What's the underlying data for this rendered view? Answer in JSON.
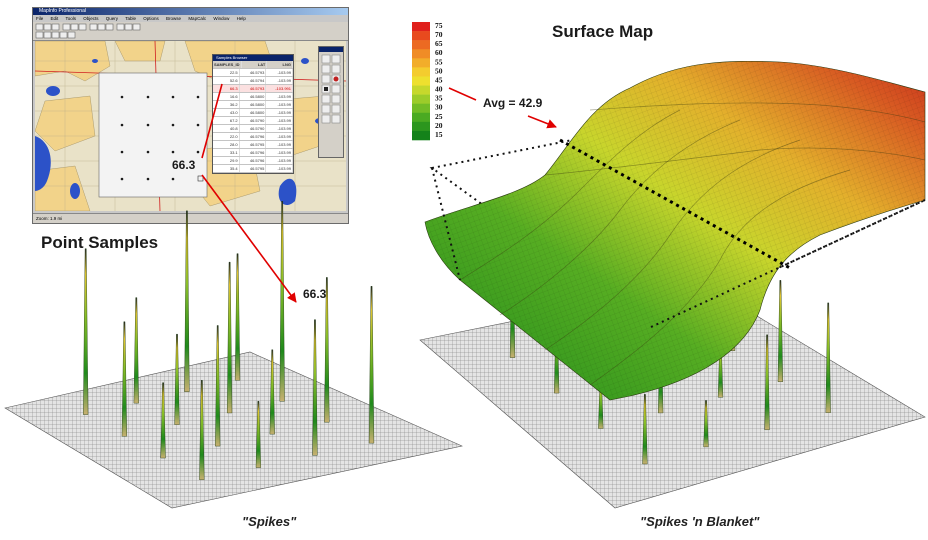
{
  "app_window": {
    "title": "MapInfo Professional",
    "menu": [
      "File",
      "Edit",
      "Tools",
      "Objects",
      "Query",
      "Table",
      "Options",
      "Browse",
      "MapCalc",
      "Window",
      "Help"
    ],
    "status_text": "Zoom: 1.9 mi"
  },
  "samples_browser": {
    "title": "Samples Browser",
    "columns": [
      "SAMPLES_ID",
      "LAT",
      "LNG"
    ],
    "rows": [
      [
        "22.5",
        "46.5793",
        "-103.99"
      ],
      [
        "52.6",
        "46.5794",
        "-103.99"
      ],
      [
        "66.3",
        "46.5793",
        "-103.991"
      ],
      [
        "16.6",
        "46.5800",
        "-103.99"
      ],
      [
        "36.2",
        "46.5800",
        "-103.99"
      ],
      [
        "43.0",
        "46.5800",
        "-103.99"
      ],
      [
        "67.2",
        "46.5790",
        "-103.99"
      ],
      [
        "40.8",
        "46.5790",
        "-103.99"
      ],
      [
        "22.0",
        "46.5796",
        "-103.99"
      ],
      [
        "28.0",
        "46.5795",
        "-103.99"
      ],
      [
        "33.1",
        "46.5796",
        "-103.99"
      ],
      [
        "29.9",
        "46.5796",
        "-103.99"
      ],
      [
        "35.4",
        "46.5795",
        "-103.99"
      ],
      [
        "28.0",
        "46.5794",
        "-103.99"
      ],
      [
        "56.1",
        "46.5794",
        "-103.99"
      ],
      [
        "36.5",
        "46.5795",
        "-103.99"
      ]
    ]
  },
  "labels": {
    "sample_value_map": "66.3",
    "sample_value_spike": "66.3",
    "point_samples_title": "Point Samples",
    "surface_map_title": "Surface Map",
    "avg_label": "Avg = 42.9",
    "spikes_caption": "\"Spikes\"",
    "spikes_blanket_caption": "\"Spikes 'n Blanket\""
  },
  "legend": {
    "values": [
      "75",
      "70",
      "65",
      "60",
      "55",
      "50",
      "45",
      "40",
      "35",
      "30",
      "25",
      "20",
      "15"
    ],
    "colors": [
      "#e0201c",
      "#e84a1e",
      "#ec6a22",
      "#f08c26",
      "#f2ad2a",
      "#f4cc2e",
      "#eee02e",
      "#c6d82c",
      "#9ccc2a",
      "#72bc26",
      "#4aaa22",
      "#2c961e",
      "#14821a"
    ]
  },
  "spike_heights": [
    55,
    35,
    60,
    42,
    38,
    30,
    50,
    66.3,
    25,
    40,
    28,
    48,
    33,
    22,
    45,
    52
  ],
  "colors": {
    "accent_arrow": "#e00000",
    "grid_base": "#8c8c8c",
    "map_water": "#2c52c8",
    "map_land": "#f2d38a"
  }
}
